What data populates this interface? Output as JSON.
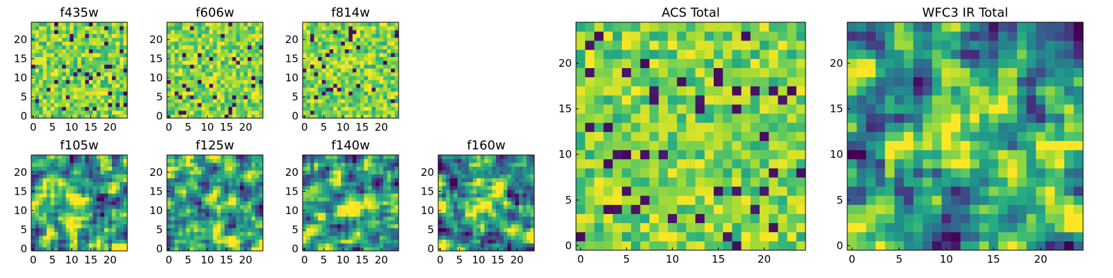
{
  "figure": {
    "colormap": "viridis",
    "colors": {
      "low": "#440154",
      "mid": "#21918c",
      "high": "#fde725",
      "frame": "#000000"
    }
  },
  "chart_data": [
    {
      "type": "heatmap",
      "title": "f435w",
      "xlim": [
        0,
        24
      ],
      "ylim": [
        0,
        24
      ],
      "xticks": [
        "0",
        "5",
        "10",
        "15",
        "20"
      ],
      "yticks": [
        "0",
        "5",
        "10",
        "15",
        "20"
      ],
      "grid": false,
      "texture": "noisy",
      "hotspots": []
    },
    {
      "type": "heatmap",
      "title": "f606w",
      "xlim": [
        0,
        24
      ],
      "ylim": [
        0,
        24
      ],
      "xticks": [
        "0",
        "5",
        "10",
        "15",
        "20"
      ],
      "yticks": [
        "0",
        "5",
        "10",
        "15",
        "20"
      ],
      "grid": false,
      "texture": "noisy",
      "hotspots": []
    },
    {
      "type": "heatmap",
      "title": "f814w",
      "xlim": [
        0,
        24
      ],
      "ylim": [
        0,
        24
      ],
      "xticks": [
        "0",
        "5",
        "10",
        "15",
        "20"
      ],
      "yticks": [
        "0",
        "5",
        "10",
        "15",
        "20"
      ],
      "grid": false,
      "texture": "noisy",
      "hotspots": []
    },
    {
      "type": "heatmap",
      "title": "f105w",
      "xlim": [
        0,
        24
      ],
      "ylim": [
        0,
        24
      ],
      "xticks": [
        "0",
        "5",
        "10",
        "15",
        "20"
      ],
      "yticks": [
        "0",
        "5",
        "10",
        "15",
        "20"
      ],
      "grid": false,
      "texture": "smooth",
      "hotspots": [
        {
          "x": 12,
          "y": 12
        }
      ]
    },
    {
      "type": "heatmap",
      "title": "f125w",
      "xlim": [
        0,
        24
      ],
      "ylim": [
        0,
        24
      ],
      "xticks": [
        "0",
        "5",
        "10",
        "15",
        "20"
      ],
      "yticks": [
        "0",
        "5",
        "10",
        "15",
        "20"
      ],
      "grid": false,
      "texture": "smooth",
      "hotspots": [
        {
          "x": 12,
          "y": 12
        }
      ]
    },
    {
      "type": "heatmap",
      "title": "f140w",
      "xlim": [
        0,
        24
      ],
      "ylim": [
        0,
        24
      ],
      "xticks": [
        "0",
        "5",
        "10",
        "15",
        "20"
      ],
      "yticks": [
        "0",
        "5",
        "10",
        "15",
        "20"
      ],
      "grid": false,
      "texture": "smooth",
      "hotspots": [
        {
          "x": 12,
          "y": 12
        }
      ]
    },
    {
      "type": "heatmap",
      "title": "f160w",
      "xlim": [
        0,
        24
      ],
      "ylim": [
        0,
        24
      ],
      "xticks": [
        "0",
        "5",
        "10",
        "15",
        "20"
      ],
      "yticks": [
        "0",
        "5",
        "10",
        "15",
        "20"
      ],
      "grid": false,
      "texture": "smooth",
      "hotspots": [
        {
          "x": 12,
          "y": 12
        }
      ]
    },
    {
      "type": "heatmap",
      "title": "ACS Total",
      "xlim": [
        0,
        24
      ],
      "ylim": [
        0,
        24
      ],
      "xticks": [
        "0",
        "5",
        "10",
        "15",
        "20"
      ],
      "yticks": [
        "0",
        "5",
        "10",
        "15",
        "20"
      ],
      "grid": false,
      "texture": "noisy",
      "hotspots": []
    },
    {
      "type": "heatmap",
      "title": "WFC3 IR Total",
      "xlim": [
        0,
        24
      ],
      "ylim": [
        0,
        24
      ],
      "xticks": [
        "0",
        "5",
        "10",
        "15",
        "20"
      ],
      "yticks": [
        "0",
        "5",
        "10",
        "15",
        "20"
      ],
      "grid": false,
      "texture": "smooth",
      "hotspots": [
        {
          "x": 12,
          "y": 12
        }
      ]
    }
  ]
}
